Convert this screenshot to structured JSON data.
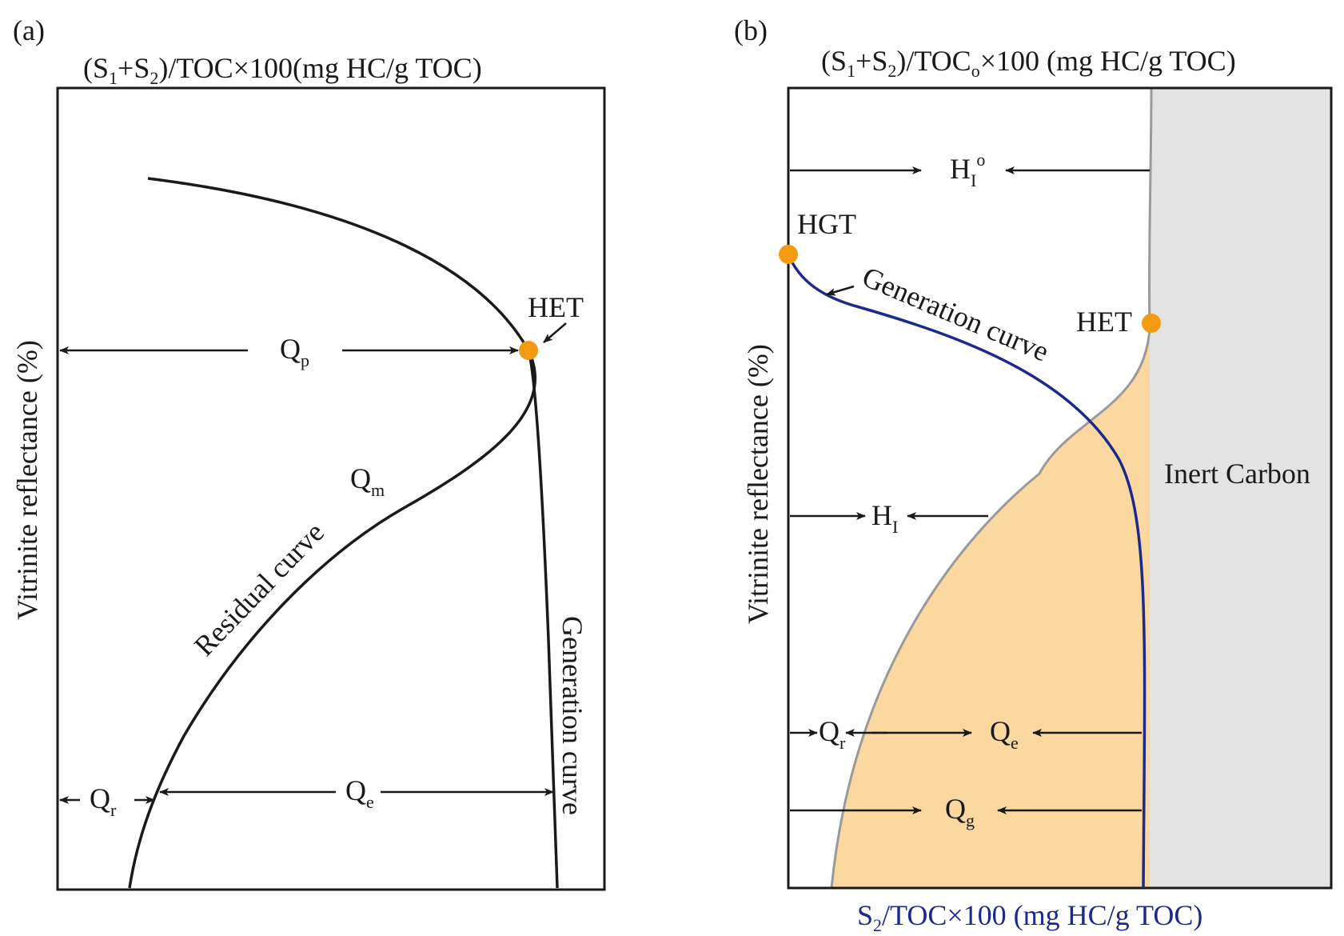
{
  "panel_a": {
    "letter": "(a)",
    "title": {
      "prefix": "(S",
      "s1": "1",
      "plus": "+S",
      "s2": "2",
      "suffix": ")/TOC×100(mg HC/g TOC)"
    },
    "y_axis_label": "Vitrinite reflectance (%)",
    "het": "HET",
    "qp": {
      "base": "Q",
      "sub": "p"
    },
    "qm": {
      "base": "Q",
      "sub": "m"
    },
    "qr": {
      "base": "Q",
      "sub": "r"
    },
    "qe": {
      "base": "Q",
      "sub": "e"
    },
    "residual_curve": "Residual curve",
    "generation_curve": "Generation curve"
  },
  "panel_b": {
    "letter": "(b)",
    "title": {
      "prefix": "(S",
      "s1": "1",
      "plus": "+S",
      "s2": "2",
      "mid": ")/TOC",
      "so": "o",
      "suffix": "×100 (mg HC/g TOC)"
    },
    "x_axis_label": {
      "prefix": "S",
      "s2": "2",
      "suffix": "/TOC×100 (mg HC/g TOC)"
    },
    "y_axis_label": "Vitrinite reflectance (%)",
    "hio": {
      "base": "H",
      "sub": "I",
      "sup": "o"
    },
    "hi": {
      "base": "H",
      "sub": "I"
    },
    "hgt": "HGT",
    "het": "HET",
    "generation_curve": "Generation curve",
    "inert_carbon": "Inert Carbon",
    "qr": {
      "base": "Q",
      "sub": "r"
    },
    "qe": {
      "base": "Q",
      "sub": "e"
    },
    "qg": {
      "base": "Q",
      "sub": "g"
    }
  },
  "colors": {
    "marker_orange": "#f29a12",
    "fill_peach": "#fad8a0",
    "inert_gray": "#e3e3e3",
    "curve_blue": "#1b2a8c",
    "boundary_gray": "#9a9a9a",
    "ink": "#1a1a1a"
  }
}
